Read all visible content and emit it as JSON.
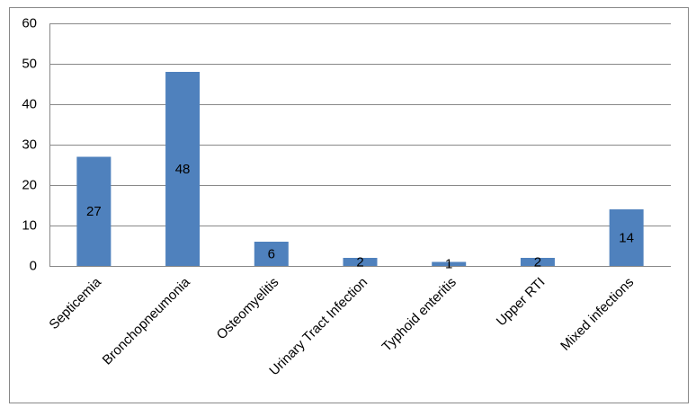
{
  "chart_data": {
    "type": "bar",
    "categories": [
      "Septicemia",
      "Bronchopneumonia",
      "Osteomyelitis",
      "Urinary Tract Infection",
      "Typhoid enteritis",
      "Upper RTI",
      "Mixed infections"
    ],
    "values": [
      27,
      48,
      6,
      2,
      1,
      2,
      14
    ],
    "color": "#4f81bd",
    "ylim": [
      0,
      60
    ],
    "yticks": [
      0,
      10,
      20,
      30,
      40,
      50,
      60
    ],
    "grid": true
  }
}
